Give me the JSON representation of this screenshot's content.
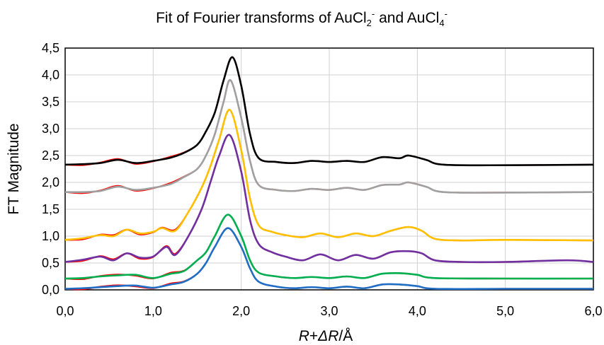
{
  "chart_data": {
    "type": "line",
    "title": {
      "parts": [
        {
          "text": "Fit of Fourier transforms of AuCl",
          "shift": "none"
        },
        {
          "text": "2",
          "shift": "sub"
        },
        {
          "text": "-",
          "shift": "super"
        },
        {
          "text": " and AuCl",
          "shift": "none"
        },
        {
          "text": "4",
          "shift": "sub"
        },
        {
          "text": "-",
          "shift": "super"
        }
      ]
    },
    "xlabel": {
      "parts": [
        {
          "text": "R",
          "style": "italic"
        },
        {
          "text": "+",
          "style": "normal"
        },
        {
          "text": "ΔR",
          "style": "italic"
        },
        {
          "text": "/Å",
          "style": "normal"
        }
      ]
    },
    "ylabel": "FT Magnitude",
    "xlim": [
      0,
      6
    ],
    "ylim": [
      0,
      4.5
    ],
    "x_ticks": [
      "0,0",
      "1,0",
      "2,0",
      "3,0",
      "4,0",
      "5,0",
      "6,0"
    ],
    "y_ticks": [
      "0,0",
      "0,5",
      "1,0",
      "1,5",
      "2,0",
      "2,5",
      "3,0",
      "3,5",
      "4,0",
      "4,5"
    ],
    "x_tick_values": [
      0,
      1,
      2,
      3,
      4,
      5,
      6
    ],
    "y_tick_values": [
      0,
      0.5,
      1,
      1.5,
      2,
      2.5,
      3,
      3.5,
      4,
      4.5
    ],
    "grid": true,
    "legend": "none",
    "series": [
      {
        "color": "#000000",
        "fit_color": "#ff0000",
        "baseline": 2.33,
        "peak_x": 1.9,
        "peak_y": 4.33,
        "shoulder": 0.35,
        "points": [
          [
            0,
            2.33
          ],
          [
            0.2,
            2.34
          ],
          [
            0.4,
            2.36
          ],
          [
            0.6,
            2.42
          ],
          [
            0.8,
            2.36
          ],
          [
            1.0,
            2.4
          ],
          [
            1.2,
            2.46
          ],
          [
            1.35,
            2.55
          ],
          [
            1.5,
            2.7
          ],
          [
            1.6,
            2.95
          ],
          [
            1.7,
            3.3
          ],
          [
            1.8,
            3.9
          ],
          [
            1.9,
            4.33
          ],
          [
            2.0,
            3.8
          ],
          [
            2.1,
            2.9
          ],
          [
            2.2,
            2.45
          ],
          [
            2.4,
            2.38
          ],
          [
            2.6,
            2.36
          ],
          [
            2.8,
            2.4
          ],
          [
            3.0,
            2.38
          ],
          [
            3.2,
            2.4
          ],
          [
            3.4,
            2.38
          ],
          [
            3.6,
            2.47
          ],
          [
            3.8,
            2.45
          ],
          [
            3.9,
            2.5
          ],
          [
            4.1,
            2.42
          ],
          [
            4.3,
            2.33
          ],
          [
            5.0,
            2.32
          ],
          [
            6.0,
            2.33
          ]
        ]
      },
      {
        "color": "#a0a0a0",
        "fit_color": "#ff0000",
        "baseline": 1.82,
        "peak_x": 1.88,
        "peak_y": 3.9,
        "points": [
          [
            0,
            1.82
          ],
          [
            0.2,
            1.82
          ],
          [
            0.4,
            1.84
          ],
          [
            0.6,
            1.92
          ],
          [
            0.8,
            1.86
          ],
          [
            1.0,
            1.9
          ],
          [
            1.2,
            1.97
          ],
          [
            1.35,
            2.1
          ],
          [
            1.5,
            2.25
          ],
          [
            1.6,
            2.5
          ],
          [
            1.7,
            2.9
          ],
          [
            1.8,
            3.5
          ],
          [
            1.88,
            3.9
          ],
          [
            2.0,
            3.2
          ],
          [
            2.1,
            2.4
          ],
          [
            2.2,
            1.95
          ],
          [
            2.4,
            1.86
          ],
          [
            2.6,
            1.84
          ],
          [
            2.8,
            1.88
          ],
          [
            3.0,
            1.86
          ],
          [
            3.2,
            1.9
          ],
          [
            3.4,
            1.86
          ],
          [
            3.6,
            1.95
          ],
          [
            3.8,
            1.96
          ],
          [
            3.9,
            2.0
          ],
          [
            4.1,
            1.92
          ],
          [
            4.3,
            1.82
          ],
          [
            5.0,
            1.81
          ],
          [
            6.0,
            1.82
          ]
        ]
      },
      {
        "color": "#ffc000",
        "fit_color": "#ff0000",
        "baseline": 0.93,
        "peak_x": 1.87,
        "peak_y": 3.35,
        "points": [
          [
            0,
            0.93
          ],
          [
            0.2,
            0.96
          ],
          [
            0.4,
            1.02
          ],
          [
            0.55,
            1.0
          ],
          [
            0.7,
            1.12
          ],
          [
            0.85,
            1.05
          ],
          [
            1.0,
            1.08
          ],
          [
            1.1,
            1.15
          ],
          [
            1.25,
            1.1
          ],
          [
            1.4,
            1.45
          ],
          [
            1.55,
            1.9
          ],
          [
            1.65,
            2.3
          ],
          [
            1.75,
            2.8
          ],
          [
            1.87,
            3.35
          ],
          [
            2.0,
            2.6
          ],
          [
            2.1,
            1.7
          ],
          [
            2.2,
            1.2
          ],
          [
            2.35,
            1.08
          ],
          [
            2.5,
            1.02
          ],
          [
            2.7,
            0.98
          ],
          [
            2.9,
            1.05
          ],
          [
            3.1,
            0.98
          ],
          [
            3.3,
            1.05
          ],
          [
            3.5,
            1.0
          ],
          [
            3.7,
            1.1
          ],
          [
            3.9,
            1.17
          ],
          [
            4.05,
            1.1
          ],
          [
            4.2,
            0.95
          ],
          [
            4.5,
            0.92
          ],
          [
            5.0,
            0.93
          ],
          [
            6.0,
            0.92
          ]
        ]
      },
      {
        "color": "#7030a0",
        "fit_color": "#ff0000",
        "baseline": 0.52,
        "peak_x": 1.87,
        "peak_y": 2.88,
        "points": [
          [
            0,
            0.52
          ],
          [
            0.2,
            0.56
          ],
          [
            0.4,
            0.62
          ],
          [
            0.55,
            0.55
          ],
          [
            0.7,
            0.68
          ],
          [
            0.85,
            0.6
          ],
          [
            1.0,
            0.62
          ],
          [
            1.15,
            0.8
          ],
          [
            1.25,
            0.65
          ],
          [
            1.4,
            1.0
          ],
          [
            1.55,
            1.5
          ],
          [
            1.65,
            2.0
          ],
          [
            1.75,
            2.5
          ],
          [
            1.87,
            2.88
          ],
          [
            2.0,
            2.2
          ],
          [
            2.1,
            1.3
          ],
          [
            2.2,
            0.85
          ],
          [
            2.35,
            0.7
          ],
          [
            2.5,
            0.62
          ],
          [
            2.7,
            0.55
          ],
          [
            2.9,
            0.66
          ],
          [
            3.1,
            0.55
          ],
          [
            3.3,
            0.65
          ],
          [
            3.5,
            0.58
          ],
          [
            3.7,
            0.7
          ],
          [
            3.9,
            0.72
          ],
          [
            4.05,
            0.68
          ],
          [
            4.2,
            0.55
          ],
          [
            4.5,
            0.52
          ],
          [
            5.0,
            0.52
          ],
          [
            5.7,
            0.55
          ],
          [
            6.0,
            0.52
          ]
        ]
      },
      {
        "color": "#00b050",
        "fit_color": "#ff0000",
        "baseline": 0.21,
        "peak_x": 1.85,
        "peak_y": 1.4,
        "points": [
          [
            0,
            0.21
          ],
          [
            0.2,
            0.22
          ],
          [
            0.4,
            0.25
          ],
          [
            0.6,
            0.27
          ],
          [
            0.8,
            0.28
          ],
          [
            1.0,
            0.22
          ],
          [
            1.2,
            0.3
          ],
          [
            1.35,
            0.35
          ],
          [
            1.5,
            0.55
          ],
          [
            1.6,
            0.7
          ],
          [
            1.7,
            1.0
          ],
          [
            1.85,
            1.4
          ],
          [
            2.0,
            1.0
          ],
          [
            2.1,
            0.55
          ],
          [
            2.2,
            0.32
          ],
          [
            2.4,
            0.25
          ],
          [
            2.6,
            0.22
          ],
          [
            2.8,
            0.24
          ],
          [
            3.0,
            0.22
          ],
          [
            3.2,
            0.25
          ],
          [
            3.4,
            0.22
          ],
          [
            3.6,
            0.3
          ],
          [
            3.8,
            0.31
          ],
          [
            4.0,
            0.28
          ],
          [
            4.2,
            0.22
          ],
          [
            5.0,
            0.21
          ],
          [
            6.0,
            0.21
          ]
        ]
      },
      {
        "color": "#1f6fc6",
        "fit_color": "#ff0000",
        "baseline": 0.02,
        "peak_x": 1.85,
        "peak_y": 1.15,
        "points": [
          [
            0,
            0.02
          ],
          [
            0.2,
            0.03
          ],
          [
            0.4,
            0.05
          ],
          [
            0.6,
            0.07
          ],
          [
            0.8,
            0.08
          ],
          [
            1.0,
            0.04
          ],
          [
            1.2,
            0.1
          ],
          [
            1.35,
            0.15
          ],
          [
            1.5,
            0.3
          ],
          [
            1.6,
            0.5
          ],
          [
            1.7,
            0.8
          ],
          [
            1.85,
            1.15
          ],
          [
            2.0,
            0.8
          ],
          [
            2.1,
            0.4
          ],
          [
            2.2,
            0.15
          ],
          [
            2.4,
            0.06
          ],
          [
            2.6,
            0.03
          ],
          [
            2.8,
            0.05
          ],
          [
            3.0,
            0.03
          ],
          [
            3.2,
            0.06
          ],
          [
            3.4,
            0.03
          ],
          [
            3.6,
            0.1
          ],
          [
            3.8,
            0.1
          ],
          [
            4.0,
            0.07
          ],
          [
            4.2,
            0.02
          ],
          [
            5.0,
            0.02
          ],
          [
            6.0,
            0.02
          ]
        ]
      }
    ]
  }
}
